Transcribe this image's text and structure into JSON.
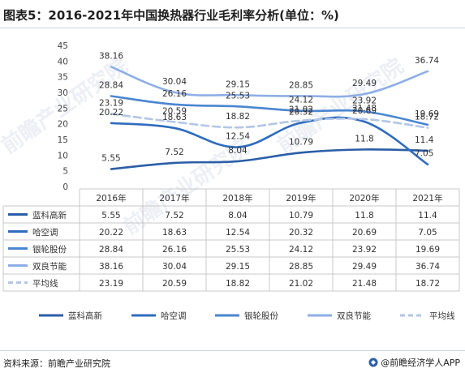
{
  "title": "图表5：2016-2021年中国换热器行业毛利率分析(单位：%)",
  "source": "资料来源：前瞻产业研究院",
  "brand": "@前瞻经济学人APP",
  "watermark": "前瞻产业研究院",
  "chart_data": {
    "type": "line",
    "categories": [
      "2016年",
      "2017年",
      "2018年",
      "2019年",
      "2020年",
      "2021年"
    ],
    "ylim": [
      0,
      45
    ],
    "yticks": [
      0,
      5,
      10,
      15,
      20,
      25,
      30,
      35,
      40,
      45
    ],
    "grid": false,
    "legend_position": "bottom",
    "data_table": true,
    "series": [
      {
        "name": "蓝科高新",
        "values": [
          5.55,
          7.52,
          8.04,
          10.79,
          11.8,
          11.4
        ],
        "color": "#2b5ea7",
        "dashed": false
      },
      {
        "name": "哈空调",
        "values": [
          20.22,
          18.63,
          12.54,
          20.32,
          20.69,
          7.05
        ],
        "color": "#2f6cbf",
        "dashed": false
      },
      {
        "name": "银轮股份",
        "values": [
          28.84,
          26.16,
          25.53,
          24.12,
          23.92,
          19.69
        ],
        "color": "#4a86d2",
        "dashed": false
      },
      {
        "name": "双良节能",
        "values": [
          38.16,
          30.04,
          29.15,
          28.85,
          29.49,
          36.74
        ],
        "color": "#8eaee6",
        "dashed": false
      },
      {
        "name": "平均线",
        "values": [
          23.19,
          20.59,
          18.82,
          21.02,
          21.48,
          18.72
        ],
        "color": "#b3c6e6",
        "dashed": true
      }
    ],
    "table_values": [
      [
        "5.55",
        "7.52",
        "8.04",
        "10.79",
        "11.8",
        "11.4"
      ],
      [
        "20.22",
        "18.63",
        "12.54",
        "20.32",
        "20.69",
        "7.05"
      ],
      [
        "28.84",
        "26.16",
        "25.53",
        "24.12",
        "23.92",
        "19.69"
      ],
      [
        "38.16",
        "30.04",
        "29.15",
        "28.85",
        "29.49",
        "36.74"
      ],
      [
        "23.19",
        "20.59",
        "18.82",
        "21.02",
        "21.48",
        "18.72"
      ]
    ],
    "point_labels": [
      [
        "5.55",
        "7.52",
        "8.04",
        "10.79",
        "11.8",
        "11.4"
      ],
      [
        "20.22",
        "18.63",
        "12.54",
        "20.32",
        "20.69",
        "7.05"
      ],
      [
        "28.84",
        "26.16",
        "25.53",
        "24.12",
        "23.92",
        "19.69"
      ],
      [
        "38.16",
        "30.04",
        "29.15",
        "28.85",
        "29.49",
        "36.74"
      ],
      [
        "23.19",
        "20.59",
        "18.82",
        "21.02",
        "21.48",
        "18.72"
      ]
    ]
  }
}
